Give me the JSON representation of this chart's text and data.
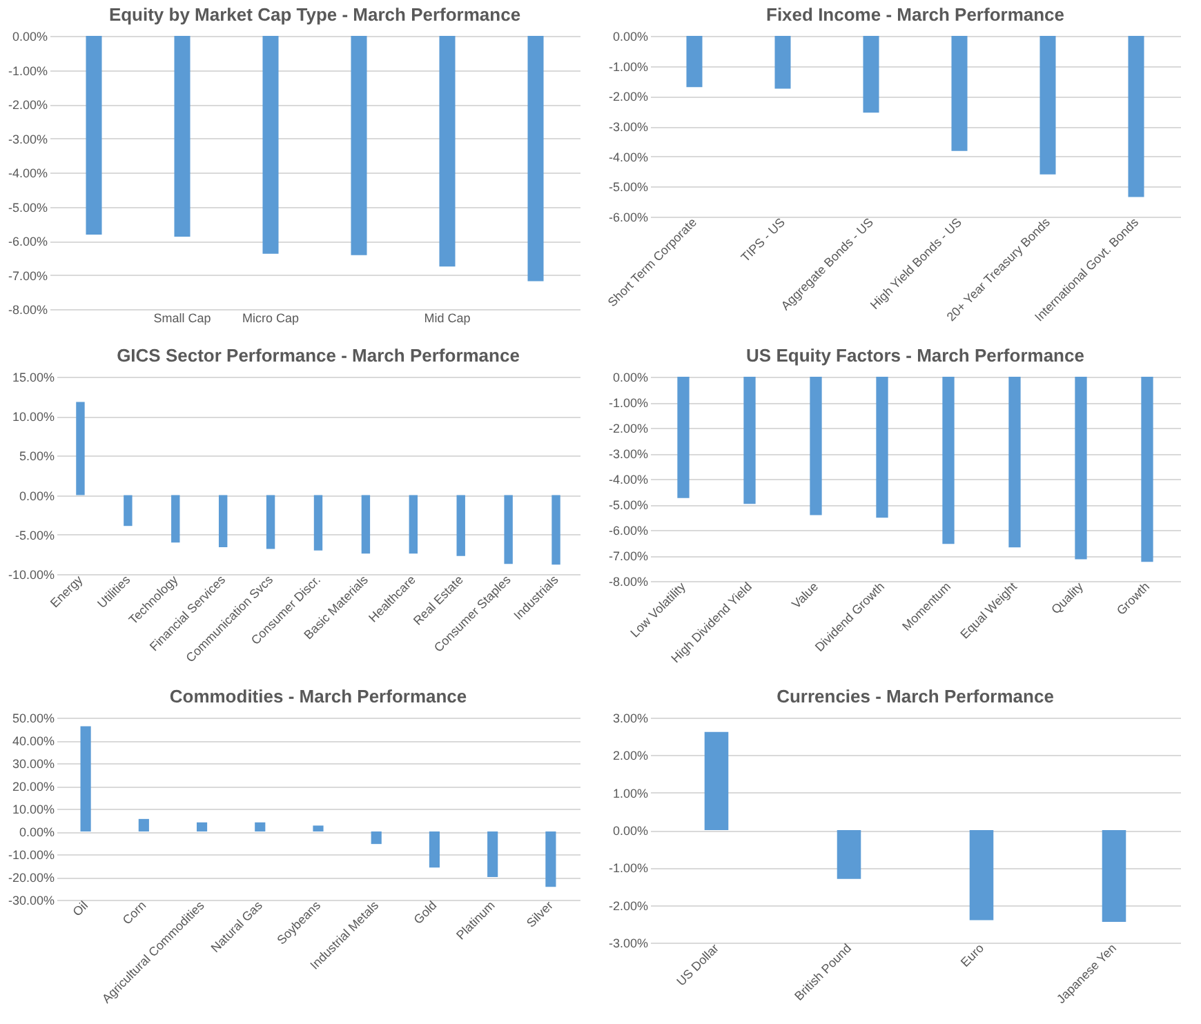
{
  "chart_data": [
    {
      "type": "bar",
      "title": "Equity by Market Cap Type - March Performance",
      "categories": [
        null,
        "Small Cap",
        "Micro Cap",
        null,
        "Mid Cap",
        null
      ],
      "values": [
        -5.82,
        -5.88,
        -6.38,
        -6.42,
        -6.75,
        -7.18
      ],
      "color": "#5b9bd5",
      "ylim": [
        -8,
        0
      ],
      "yticks": [
        {
          "value": 0,
          "label": "0.00%"
        },
        {
          "value": -1,
          "label": "-1.00%"
        },
        {
          "value": -2,
          "label": "-2.00%"
        },
        {
          "value": -3,
          "label": "-3.00%"
        },
        {
          "value": -4,
          "label": "-4.00%"
        },
        {
          "value": -5,
          "label": "-5.00%"
        },
        {
          "value": -6,
          "label": "-6.00%"
        },
        {
          "value": -7,
          "label": "-7.00%"
        },
        {
          "value": -8,
          "label": "-8.00%"
        }
      ],
      "grid": "y"
    },
    {
      "type": "bar",
      "title": "Fixed Income - March Performance",
      "categories": [
        "Short Term Corporate",
        "TIPS - US",
        "Aggregate Bonds - US",
        "High Yield Bonds - US",
        "20+ Year Treasury Bonds",
        "International Govt. Bonds"
      ],
      "values": [
        -1.7,
        -1.75,
        -2.55,
        -3.82,
        -4.6,
        -5.35
      ],
      "color": "#5b9bd5",
      "ylim": [
        -6,
        0
      ],
      "yticks": [
        {
          "value": 0,
          "label": "0.00%"
        },
        {
          "value": -1,
          "label": "-1.00%"
        },
        {
          "value": -2,
          "label": "-2.00%"
        },
        {
          "value": -3,
          "label": "-3.00%"
        },
        {
          "value": -4,
          "label": "-4.00%"
        },
        {
          "value": -5,
          "label": "-5.00%"
        },
        {
          "value": -6,
          "label": "-6.00%"
        }
      ],
      "grid": "y"
    },
    {
      "type": "bar",
      "title": "GICS Sector Performance - March Performance",
      "categories": [
        "Energy",
        "Utilities",
        "Technology",
        "Financial Services",
        "Communication Svcs",
        "Consumer Discr.",
        "Basic Materials",
        "Healthcare",
        "Real Estate",
        "Consumer Staples",
        "Industrials"
      ],
      "values": [
        11.8,
        -3.9,
        -6.0,
        -6.6,
        -6.8,
        -7.0,
        -7.4,
        -7.4,
        -7.7,
        -8.7,
        -8.8
      ],
      "color": "#5b9bd5",
      "ylim": [
        -10,
        15
      ],
      "yticks": [
        {
          "value": 15,
          "label": "15.00%"
        },
        {
          "value": 10,
          "label": "10.00%"
        },
        {
          "value": 5,
          "label": "5.00%"
        },
        {
          "value": 0,
          "label": "0.00%"
        },
        {
          "value": -5,
          "label": "-5.00%"
        },
        {
          "value": -10,
          "label": "-10.00%"
        }
      ],
      "grid": "y"
    },
    {
      "type": "bar",
      "title": "US Equity Factors - March Performance",
      "categories": [
        "Low Volatility",
        "High Dividend Yield",
        "Value",
        "Dividend Growth",
        "Momentum",
        "Equal Weight",
        "Quality",
        "Growth"
      ],
      "values": [
        -4.75,
        -4.98,
        -5.42,
        -5.52,
        -6.55,
        -6.68,
        -7.15,
        -7.25
      ],
      "color": "#5b9bd5",
      "ylim": [
        -8,
        0
      ],
      "yticks": [
        {
          "value": 0,
          "label": "0.00%"
        },
        {
          "value": -1,
          "label": "-1.00%"
        },
        {
          "value": -2,
          "label": "-2.00%"
        },
        {
          "value": -3,
          "label": "-3.00%"
        },
        {
          "value": -4,
          "label": "-4.00%"
        },
        {
          "value": -5,
          "label": "-5.00%"
        },
        {
          "value": -6,
          "label": "-6.00%"
        },
        {
          "value": -7,
          "label": "-7.00%"
        },
        {
          "value": -8,
          "label": "-8.00%"
        }
      ],
      "grid": "y"
    },
    {
      "type": "bar",
      "title": "Commodities - March Performance",
      "categories": [
        "Oil",
        "Corn",
        "Agricultural Commodities",
        "Natural Gas",
        "Soybeans",
        "Industrial Metals",
        "Gold",
        "Platinum",
        "Silver"
      ],
      "values": [
        46.2,
        5.5,
        4.0,
        4.0,
        2.6,
        -5.5,
        -15.8,
        -20.0,
        -24.3
      ],
      "color": "#5b9bd5",
      "ylim": [
        -30,
        50
      ],
      "yticks": [
        {
          "value": 50,
          "label": "50.00%"
        },
        {
          "value": 40,
          "label": "40.00%"
        },
        {
          "value": 30,
          "label": "30.00%"
        },
        {
          "value": 20,
          "label": "20.00%"
        },
        {
          "value": 10,
          "label": "10.00%"
        },
        {
          "value": 0,
          "label": "0.00%"
        },
        {
          "value": -10,
          "label": "-10.00%"
        },
        {
          "value": -20,
          "label": "-20.00%"
        },
        {
          "value": -30,
          "label": "-30.00%"
        }
      ],
      "grid": "y"
    },
    {
      "type": "bar",
      "title": "Currencies - March Performance",
      "categories": [
        "US Dollar",
        "British Pound",
        "Euro",
        "Japanese Yen"
      ],
      "values": [
        2.62,
        -1.3,
        -2.4,
        -2.45
      ],
      "color": "#5b9bd5",
      "ylim": [
        -3,
        3
      ],
      "yticks": [
        {
          "value": 3,
          "label": "3.00%"
        },
        {
          "value": 2,
          "label": "2.00%"
        },
        {
          "value": 1,
          "label": "1.00%"
        },
        {
          "value": 0,
          "label": "0.00%"
        },
        {
          "value": -1,
          "label": "-1.00%"
        },
        {
          "value": -2,
          "label": "-2.00%"
        },
        {
          "value": -3,
          "label": "-3.00%"
        }
      ],
      "grid": "y"
    }
  ]
}
